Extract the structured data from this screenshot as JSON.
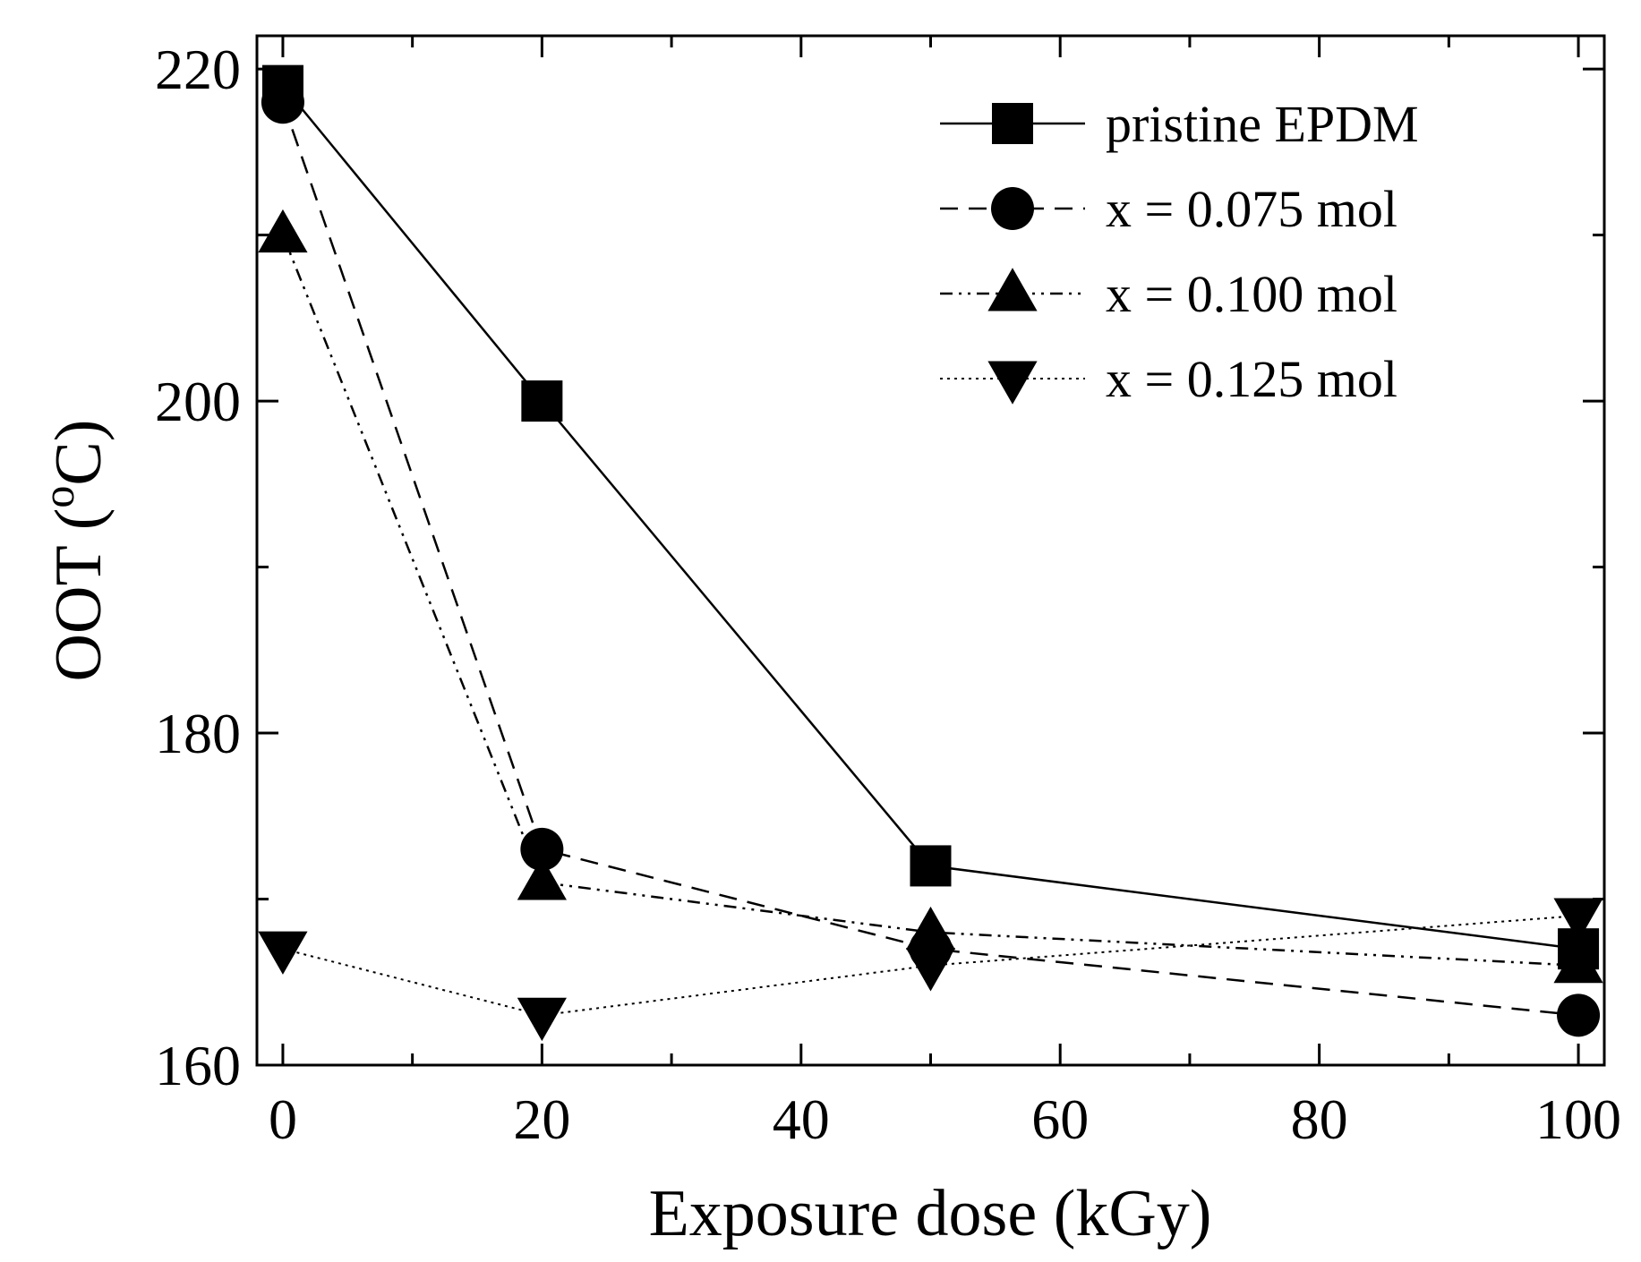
{
  "chart_data": {
    "type": "line",
    "title": "",
    "xlabel": "Exposure dose (kGy)",
    "ylabel_main": "OOT (",
    "ylabel_sup": "o",
    "ylabel_end": "C)",
    "xlim": [
      -2,
      102
    ],
    "ylim": [
      160,
      222
    ],
    "xticks": [
      "0",
      "20",
      "40",
      "60",
      "80",
      "100"
    ],
    "yticks": [
      "160",
      "180",
      "200",
      "220"
    ],
    "legend_position": "top-right",
    "x": [
      0,
      20,
      50,
      100
    ],
    "series": [
      {
        "name": "pristine EPDM",
        "marker": "square",
        "line": "solid",
        "values": [
          219,
          200,
          172,
          167
        ]
      },
      {
        "name": "x = 0.075 mol",
        "marker": "circle",
        "line": "dashed",
        "values": [
          218,
          173,
          167,
          163
        ]
      },
      {
        "name": "x = 0.100 mol",
        "marker": "triangle-up",
        "line": "dash-dot-dot",
        "values": [
          210,
          171,
          168,
          166
        ]
      },
      {
        "name": "x = 0.125 mol",
        "marker": "triangle-down",
        "line": "dotted",
        "values": [
          167,
          163,
          166,
          169
        ]
      }
    ]
  }
}
